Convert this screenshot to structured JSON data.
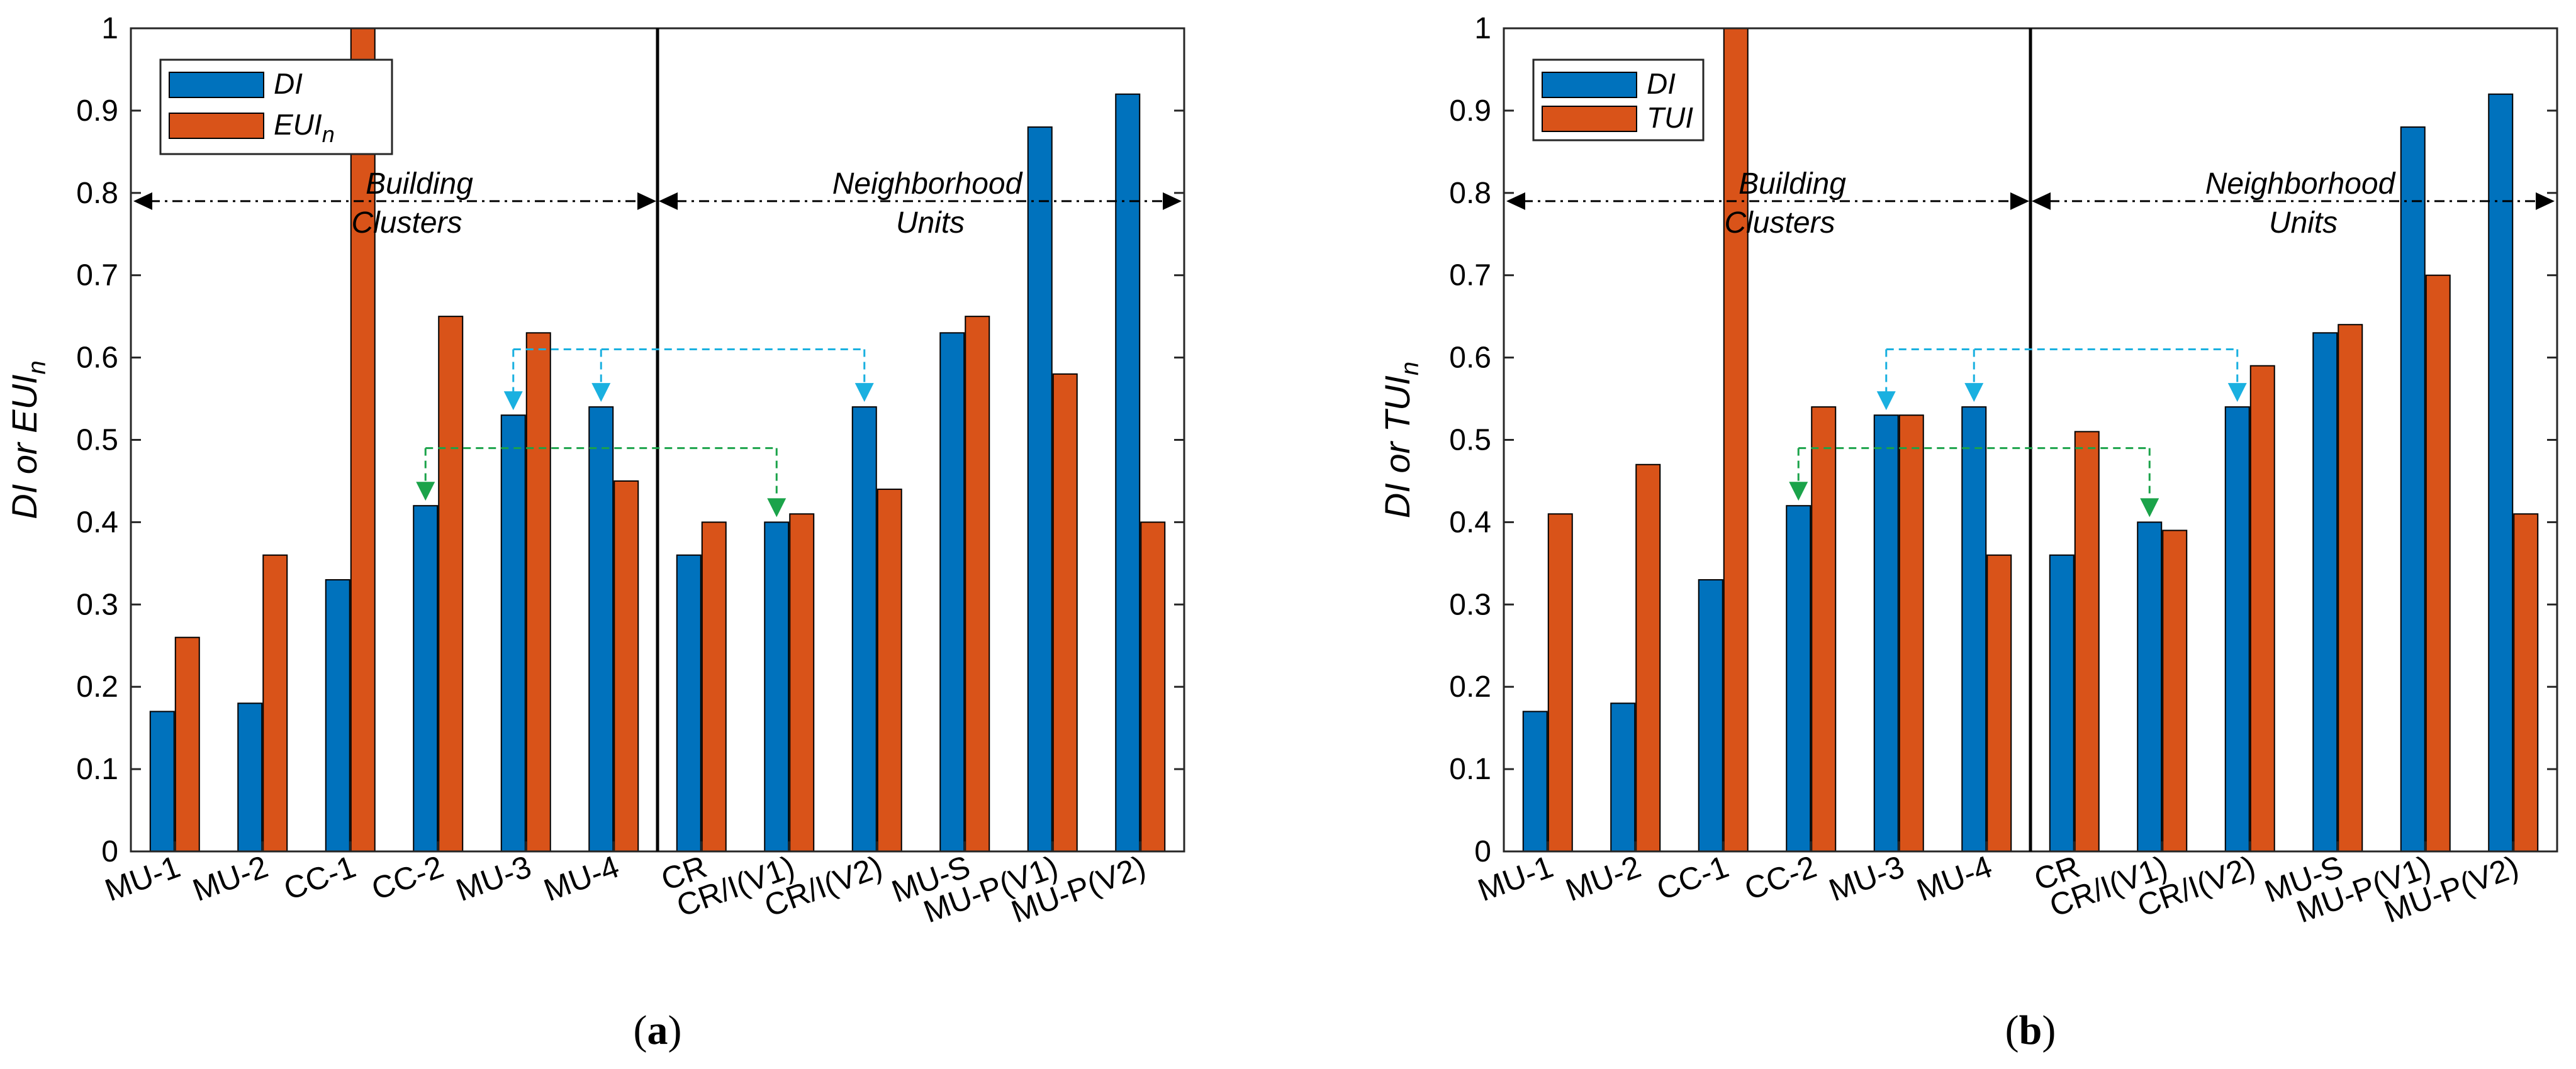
{
  "chart_data": [
    {
      "type": "bar",
      "panel_label": "a",
      "ylabel_main": "DI or EUI",
      "ylabel_sub": "n",
      "xlabel": "",
      "ylim": [
        0,
        1
      ],
      "yticks": [
        "0",
        "0.1",
        "0.2",
        "0.3",
        "0.4",
        "0.5",
        "0.6",
        "0.7",
        "0.8",
        "0.9",
        "1"
      ],
      "categories": [
        "MU-1",
        "MU-2",
        "CC-1",
        "CC-2",
        "MU-3",
        "MU-4",
        "CR",
        "CR/I(V1)",
        "CR/I(V2)",
        "MU-S",
        "MU-P(V1)",
        "MU-P(V2)"
      ],
      "series": [
        {
          "name": "DI",
          "name_sub": "",
          "color": "#0072BD",
          "values": [
            0.17,
            0.18,
            0.33,
            0.42,
            0.53,
            0.54,
            0.36,
            0.4,
            0.54,
            0.63,
            0.88,
            0.92
          ]
        },
        {
          "name": "EUI",
          "name_sub": "n",
          "color": "#D95319",
          "values": [
            0.26,
            0.36,
            1.0,
            0.65,
            0.63,
            0.45,
            0.4,
            0.41,
            0.44,
            0.65,
            0.58,
            0.4
          ]
        }
      ],
      "regions": [
        {
          "line1": "Building",
          "line2": "Clusters"
        },
        {
          "line1": "Neighborhood",
          "line2": "Units"
        }
      ],
      "divider_after_category": "MU-4",
      "region_arrow_y": 0.79,
      "annotations": [
        {
          "color": "#1AB0E0",
          "level": 0.61,
          "targets": [
            "MU-3",
            "MU-4",
            "CR/I(V2)"
          ]
        },
        {
          "color": "#1BA34A",
          "level": 0.49,
          "targets": [
            "CC-2",
            "CR/I(V1)"
          ]
        }
      ]
    },
    {
      "type": "bar",
      "panel_label": "b",
      "ylabel_main": "DI or TUI",
      "ylabel_sub": "n",
      "xlabel": "",
      "ylim": [
        0,
        1
      ],
      "yticks": [
        "0",
        "0.1",
        "0.2",
        "0.3",
        "0.4",
        "0.5",
        "0.6",
        "0.7",
        "0.8",
        "0.9",
        "1"
      ],
      "categories": [
        "MU-1",
        "MU-2",
        "CC-1",
        "CC-2",
        "MU-3",
        "MU-4",
        "CR",
        "CR/I(V1)",
        "CR/I(V2)",
        "MU-S",
        "MU-P(V1)",
        "MU-P(V2)"
      ],
      "series": [
        {
          "name": "DI",
          "name_sub": "",
          "color": "#0072BD",
          "values": [
            0.17,
            0.18,
            0.33,
            0.42,
            0.53,
            0.54,
            0.36,
            0.4,
            0.54,
            0.63,
            0.88,
            0.92
          ]
        },
        {
          "name": "TUI",
          "name_sub": "",
          "color": "#D95319",
          "values": [
            0.41,
            0.47,
            1.0,
            0.54,
            0.53,
            0.36,
            0.51,
            0.39,
            0.59,
            0.64,
            0.7,
            0.41
          ]
        }
      ],
      "regions": [
        {
          "line1": "Building",
          "line2": "Clusters"
        },
        {
          "line1": "Neighborhood",
          "line2": "Units"
        }
      ],
      "divider_after_category": "MU-4",
      "region_arrow_y": 0.79,
      "annotations": [
        {
          "color": "#1AB0E0",
          "level": 0.61,
          "targets": [
            "MU-3",
            "MU-4",
            "CR/I(V2)"
          ]
        },
        {
          "color": "#1BA34A",
          "level": 0.49,
          "targets": [
            "CC-2",
            "CR/I(V1)"
          ]
        }
      ]
    }
  ]
}
